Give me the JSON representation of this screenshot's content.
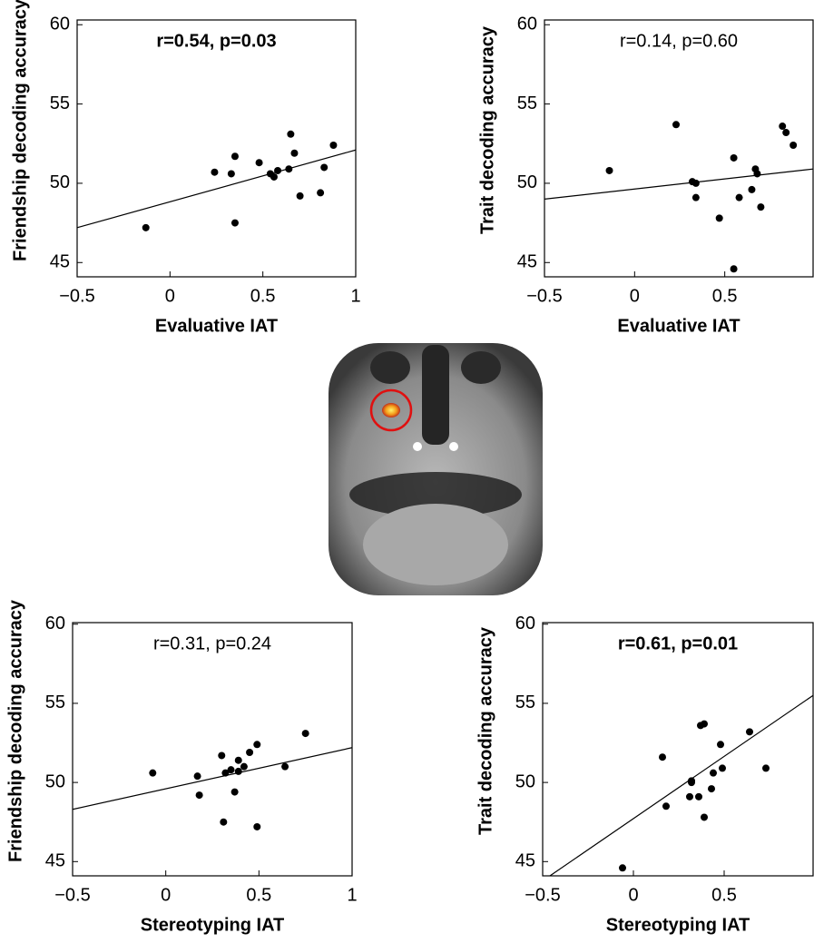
{
  "chart_data": [
    {
      "type": "scatter",
      "annotation": "r=0.54, p=0.03",
      "annotation_bold": true,
      "xlabel": "Evaluative IAT",
      "ylabel": "Friendship decoding accuracy",
      "color": "#000000",
      "x": [
        -0.13,
        0.24,
        0.33,
        0.35,
        0.35,
        0.48,
        0.54,
        0.56,
        0.58,
        0.64,
        0.65,
        0.67,
        0.7,
        0.81,
        0.83,
        0.88
      ],
      "y": [
        47.2,
        50.7,
        50.6,
        51.7,
        47.5,
        51.3,
        50.6,
        50.4,
        50.8,
        50.9,
        53.1,
        51.9,
        49.2,
        49.4,
        51.0,
        52.4
      ],
      "fit_x": [
        -0.5,
        1
      ],
      "fit_y": [
        47.2,
        52.1
      ],
      "xlim": [
        -0.5,
        1
      ],
      "ylim": [
        44.1,
        60.3
      ],
      "xticks": [
        {
          "value": -0.5,
          "label": "−0.5"
        },
        0,
        0.5,
        1
      ],
      "yticks": [
        45,
        50,
        55,
        60
      ]
    },
    {
      "type": "scatter",
      "annotation": "r=0.14, p=0.60",
      "annotation_bold": false,
      "xlabel": "Evaluative IAT",
      "ylabel": "Trait decoding accuracy",
      "color": "#000000",
      "x": [
        -0.14,
        0.23,
        0.32,
        0.34,
        0.34,
        0.47,
        0.55,
        0.55,
        0.58,
        0.65,
        0.67,
        0.68,
        0.7,
        0.82,
        0.84,
        0.88
      ],
      "y": [
        50.8,
        53.7,
        50.1,
        50.0,
        49.1,
        47.8,
        51.6,
        44.6,
        49.1,
        49.6,
        50.9,
        50.6,
        48.5,
        53.6,
        53.2,
        52.4
      ],
      "fit_x": [
        -0.5,
        0.99
      ],
      "fit_y": [
        49.0,
        50.9
      ],
      "xlim": [
        -0.5,
        0.99
      ],
      "ylim": [
        44.1,
        60.3
      ],
      "xticks": [
        {
          "value": -0.5,
          "label": "−0.5"
        },
        0,
        0.5
      ],
      "yticks": [
        45,
        50,
        55,
        60
      ]
    },
    {
      "type": "scatter",
      "annotation": "r=0.31, p=0.24",
      "annotation_bold": false,
      "xlabel": "Stereotyping IAT",
      "ylabel": "Friendship decoding accuracy",
      "color": "#000000",
      "x": [
        -0.07,
        0.17,
        0.18,
        0.3,
        0.31,
        0.32,
        0.35,
        0.37,
        0.39,
        0.39,
        0.42,
        0.45,
        0.49,
        0.49,
        0.64,
        0.75
      ],
      "y": [
        50.6,
        50.4,
        49.2,
        51.7,
        47.5,
        50.6,
        50.8,
        49.4,
        50.7,
        51.4,
        51.0,
        51.9,
        52.4,
        47.2,
        51.0,
        53.1
      ],
      "fit_x": [
        -0.5,
        1
      ],
      "fit_y": [
        48.3,
        52.2
      ],
      "xlim": [
        -0.5,
        1
      ],
      "ylim": [
        44.1,
        60.1
      ],
      "xticks": [
        {
          "value": -0.5,
          "label": "−0.5"
        },
        0,
        0.5,
        1
      ],
      "yticks": [
        45,
        50,
        55,
        60
      ]
    },
    {
      "type": "scatter",
      "annotation": "r=0.61, p=0.01",
      "annotation_bold": true,
      "xlabel": "Stereotyping IAT",
      "ylabel": "Trait decoding accuracy",
      "color": "#000000",
      "x": [
        -0.06,
        0.16,
        0.18,
        0.31,
        0.32,
        0.32,
        0.36,
        0.37,
        0.39,
        0.39,
        0.43,
        0.44,
        0.48,
        0.49,
        0.64,
        0.73
      ],
      "y": [
        44.6,
        51.6,
        48.5,
        49.1,
        50.1,
        50.0,
        49.1,
        53.6,
        53.7,
        47.8,
        49.6,
        50.6,
        52.4,
        50.9,
        53.2,
        50.9
      ],
      "fit_x": [
        -0.46,
        0.99
      ],
      "fit_y": [
        44.1,
        55.5
      ],
      "xlim": [
        -0.5,
        0.99
      ],
      "ylim": [
        44.1,
        60.1
      ],
      "xticks": [
        {
          "value": -0.5,
          "label": "−0.5"
        },
        0,
        0.5
      ],
      "yticks": [
        45,
        50,
        55,
        60
      ]
    }
  ]
}
